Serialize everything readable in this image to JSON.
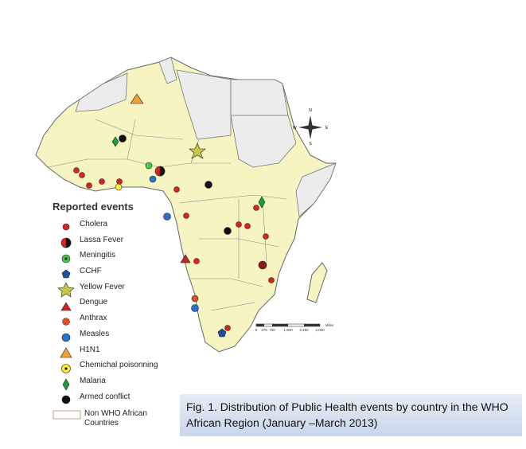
{
  "legend": {
    "title": "Reported events",
    "items": [
      "Cholera",
      "Lassa Fever",
      "Meningitis",
      "CCHF",
      "Yellow Fever",
      "Dengue",
      "Anthrax",
      "Measles",
      "H1N1",
      "Chemichal poisonning",
      "Malaria",
      "Armed conflict"
    ],
    "non_who": "Non WHO African Countries"
  },
  "scale": {
    "ticks": [
      "0",
      "375",
      "750",
      "1,500",
      "2,250",
      "3,000"
    ],
    "unit": "Miles"
  },
  "compass": {
    "n": "N",
    "s": "S",
    "e": "E",
    "w": "W"
  },
  "caption": "Fig. 1. Distribution of Public Health events by country in the WHO African Region (January –March 2013)"
}
